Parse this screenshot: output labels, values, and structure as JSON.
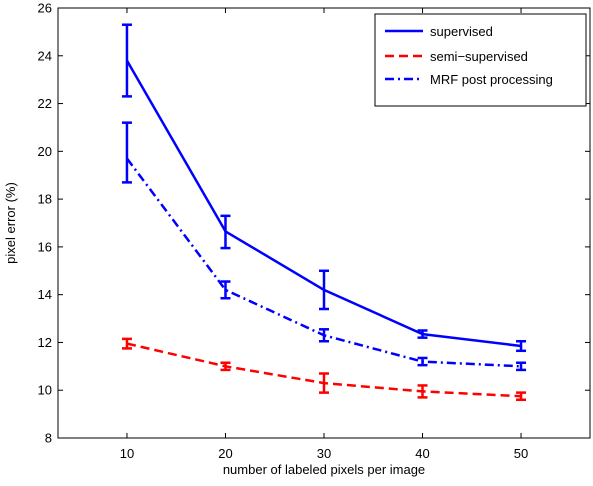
{
  "chart_data": {
    "type": "line",
    "title": "",
    "xlabel": "number of labeled pixels per image",
    "ylabel": "pixel error (%)",
    "xlim": [
      3,
      57
    ],
    "ylim": [
      8,
      26
    ],
    "x_ticks": [
      10,
      20,
      30,
      40,
      50
    ],
    "y_ticks": [
      8,
      10,
      12,
      14,
      16,
      18,
      20,
      22,
      24,
      26
    ],
    "grid": false,
    "legend_position": "top-right",
    "series": [
      {
        "name": "supervised",
        "color": "#0000ff",
        "line_style": "solid",
        "x": [
          10,
          20,
          30,
          40,
          50
        ],
        "y": [
          23.8,
          16.65,
          14.2,
          12.35,
          11.85
        ],
        "err_low": [
          22.3,
          15.95,
          13.4,
          12.2,
          11.65
        ],
        "err_high": [
          25.3,
          17.3,
          15.0,
          12.5,
          12.05
        ]
      },
      {
        "name": "semi−supervised",
        "color": "#ff0000",
        "line_style": "dashed",
        "x": [
          10,
          20,
          30,
          40,
          50
        ],
        "y": [
          11.95,
          11.0,
          10.3,
          9.95,
          9.75
        ],
        "err_low": [
          11.75,
          10.85,
          9.9,
          9.7,
          9.6
        ],
        "err_high": [
          12.15,
          11.15,
          10.7,
          10.2,
          9.9
        ]
      },
      {
        "name": "MRF post processing",
        "color": "#0000ff",
        "line_style": "dash-dot",
        "x": [
          10,
          20,
          30,
          40,
          50
        ],
        "y": [
          19.7,
          14.2,
          12.3,
          11.2,
          11.0
        ],
        "err_low": [
          18.7,
          13.85,
          12.05,
          11.05,
          10.85
        ],
        "err_high": [
          21.2,
          14.55,
          12.55,
          11.35,
          11.15
        ]
      }
    ]
  }
}
